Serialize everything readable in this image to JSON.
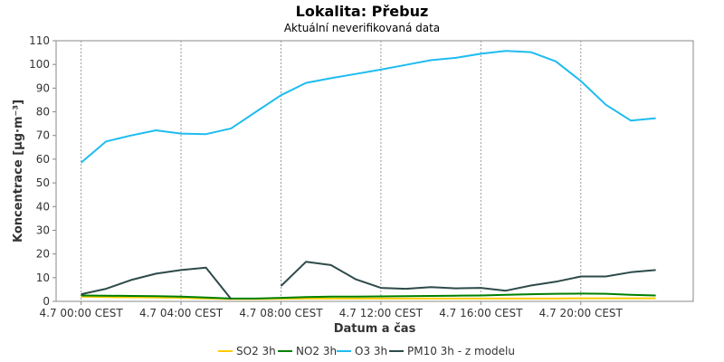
{
  "chart_data": {
    "type": "line",
    "title": "Lokalita: Přebuz",
    "subtitle": "Aktuální neverifikovaná data",
    "xlabel": "Datum a čas",
    "ylabel": "Koncentrace [µg·m⁻³]",
    "ylim": [
      0,
      110
    ],
    "yticks": [
      0,
      10,
      20,
      30,
      40,
      50,
      60,
      70,
      80,
      90,
      100,
      110
    ],
    "xticks": [
      {
        "hour": 0,
        "label": "4.7 00:00 CEST"
      },
      {
        "hour": 4,
        "label": "4.7 04:00 CEST"
      },
      {
        "hour": 8,
        "label": "4.7 08:00 CEST"
      },
      {
        "hour": 12,
        "label": "4.7 12:00 CEST"
      },
      {
        "hour": 16,
        "label": "4.7 16:00 CEST"
      },
      {
        "hour": 20,
        "label": "4.7 20:00 CEST"
      }
    ],
    "xlim_hours": [
      -1,
      24.5
    ],
    "x_hours": [
      0,
      1,
      2,
      3,
      4,
      5,
      6,
      7,
      8,
      9,
      10,
      11,
      12,
      13,
      14,
      15,
      16,
      17,
      18,
      19,
      20,
      21,
      22,
      23
    ],
    "grid": true,
    "legend_position": "bottom",
    "series": [
      {
        "name": "SO2 3h",
        "color": "#ffcc00",
        "values": [
          2.0,
          1.8,
          1.7,
          1.6,
          1.5,
          1.2,
          1.0,
          1.0,
          1.1,
          1.2,
          1.2,
          1.2,
          1.2,
          1.2,
          1.2,
          1.2,
          1.2,
          1.2,
          1.2,
          1.2,
          1.3,
          1.3,
          1.3,
          1.3
        ]
      },
      {
        "name": "NO2 3h",
        "color": "#008000",
        "values": [
          2.5,
          2.4,
          2.3,
          2.2,
          2.0,
          1.6,
          1.2,
          1.2,
          1.5,
          1.8,
          2.0,
          2.0,
          2.1,
          2.2,
          2.3,
          2.4,
          2.5,
          2.8,
          3.0,
          3.2,
          3.3,
          3.2,
          2.8,
          2.5
        ]
      },
      {
        "name": "O3 3h",
        "color": "#1ebcf0",
        "values": [
          58.5,
          67.5,
          70.0,
          72.2,
          70.8,
          70.6,
          73.0,
          80.0,
          87.0,
          92.2,
          94.2,
          96.0,
          97.8,
          99.8,
          101.8,
          102.8,
          104.5,
          105.7,
          105.2,
          101.3,
          93.0,
          83.0,
          76.3,
          77.3
        ]
      },
      {
        "name": "PM10 3h - z modelu",
        "color": "#2e4a4a",
        "values": [
          3.0,
          5.3,
          9.0,
          11.7,
          13.2,
          14.2,
          1.0,
          null,
          6.5,
          16.7,
          15.3,
          9.3,
          5.7,
          5.3,
          6.0,
          5.5,
          5.7,
          4.5,
          6.7,
          8.3,
          10.5,
          10.5,
          12.3,
          13.2
        ]
      }
    ]
  }
}
